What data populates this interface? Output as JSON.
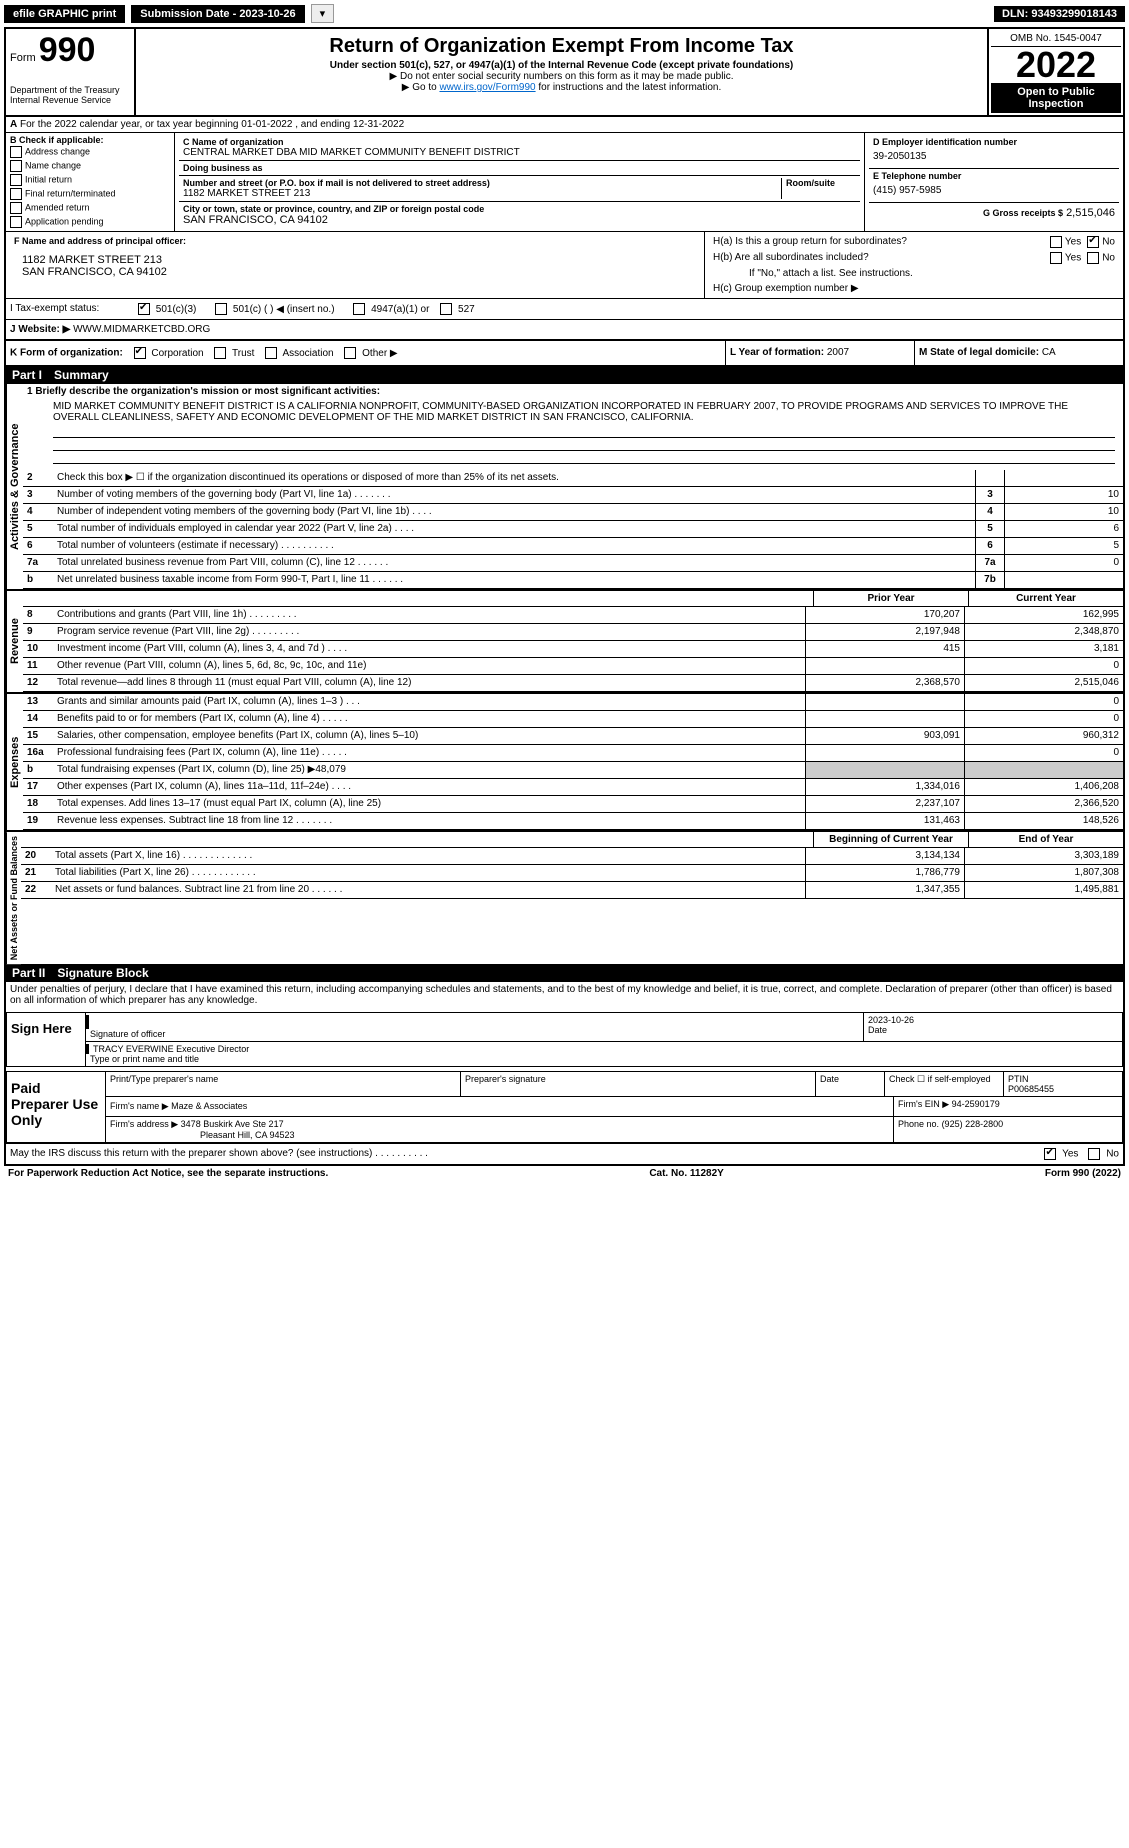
{
  "topbar": {
    "efile": "efile GRAPHIC print",
    "submission": "Submission Date - 2023-10-26",
    "dln": "DLN: 93493299018143"
  },
  "header": {
    "form_word": "Form",
    "form_num": "990",
    "dept": "Department of the Treasury\nInternal Revenue Service",
    "title": "Return of Organization Exempt From Income Tax",
    "subtitle": "Under section 501(c), 527, or 4947(a)(1) of the Internal Revenue Code (except private foundations)",
    "warn": "▶ Do not enter social security numbers on this form as it may be made public.",
    "goto": "▶ Go to www.irs.gov/Form990 for instructions and the latest information.",
    "goto_link": "www.irs.gov/Form990",
    "omb": "OMB No. 1545-0047",
    "year": "2022",
    "opi": "Open to Public Inspection"
  },
  "section_a": "For the 2022 calendar year, or tax year beginning 01-01-2022   , and ending 12-31-2022",
  "box_b": {
    "title": "B Check if applicable:",
    "items": [
      "Address change",
      "Name change",
      "Initial return",
      "Final return/terminated",
      "Amended return",
      "Application pending"
    ]
  },
  "box_c": {
    "name_lbl": "C Name of organization",
    "name": "CENTRAL MARKET DBA MID MARKET COMMUNITY BENEFIT DISTRICT",
    "dba_lbl": "Doing business as",
    "addr_lbl": "Number and street (or P.O. box if mail is not delivered to street address)",
    "room_lbl": "Room/suite",
    "addr": "1182 MARKET STREET 213",
    "city_lbl": "City or town, state or province, country, and ZIP or foreign postal code",
    "city": "SAN FRANCISCO, CA  94102"
  },
  "box_d": {
    "lbl": "D Employer identification number",
    "val": "39-2050135"
  },
  "box_e": {
    "lbl": "E Telephone number",
    "val": "(415) 957-5985"
  },
  "box_g": {
    "lbl": "G Gross receipts $",
    "val": "2,515,046"
  },
  "box_f": {
    "lbl": "F  Name and address of principal officer:",
    "addr1": "1182 MARKET STREET 213",
    "addr2": "SAN FRANCISCO, CA  94102"
  },
  "box_h": {
    "a": "H(a)  Is this a group return for subordinates?",
    "b": "H(b)  Are all subordinates included?",
    "b2": "If \"No,\" attach a list. See instructions.",
    "c": "H(c)  Group exemption number ▶",
    "yes": "Yes",
    "no": "No"
  },
  "tax_status": {
    "i": "I  Tax-exempt status:",
    "c3": "501(c)(3)",
    "c": "501(c) (  ) ◀ (insert no.)",
    "a1": "4947(a)(1) or",
    "s527": "527"
  },
  "website": {
    "j": "J  Website: ▶",
    "val": "WWW.MIDMARKETCBD.ORG"
  },
  "box_k": "K Form of organization:",
  "k_opts": {
    "corp": "Corporation",
    "trust": "Trust",
    "assoc": "Association",
    "other": "Other ▶"
  },
  "box_l": {
    "lbl": "L Year of formation:",
    "val": "2007"
  },
  "box_m": {
    "lbl": "M State of legal domicile:",
    "val": "CA"
  },
  "part1": {
    "label": "Part I",
    "title": "Summary"
  },
  "mission": {
    "q": "1  Briefly describe the organization's mission or most significant activities:",
    "text": "MID MARKET COMMUNITY BENEFIT DISTRICT IS A CALIFORNIA NONPROFIT, COMMUNITY-BASED ORGANIZATION INCORPORATED IN FEBRUARY 2007, TO PROVIDE PROGRAMS AND SERVICES TO IMPROVE THE OVERALL CLEANLINESS, SAFETY AND ECONOMIC DEVELOPMENT OF THE MID MARKET DISTRICT IN SAN FRANCISCO, CALIFORNIA."
  },
  "gov_lines": [
    {
      "n": "2",
      "d": "Check this box ▶ ☐  if the organization discontinued its operations or disposed of more than 25% of its net assets.",
      "box": "",
      "v": ""
    },
    {
      "n": "3",
      "d": "Number of voting members of the governing body (Part VI, line 1a)   .    .    .    .    .    .    .",
      "box": "3",
      "v": "10"
    },
    {
      "n": "4",
      "d": "Number of independent voting members of the governing body (Part VI, line 1b)   .    .    .    .",
      "box": "4",
      "v": "10"
    },
    {
      "n": "5",
      "d": "Total number of individuals employed in calendar year 2022 (Part V, line 2a)   .    .    .    .",
      "box": "5",
      "v": "6"
    },
    {
      "n": "6",
      "d": "Total number of volunteers (estimate if necessary)   .    .    .    .    .    .    .    .    .    .",
      "box": "6",
      "v": "5"
    },
    {
      "n": "7a",
      "d": "Total unrelated business revenue from Part VIII, column (C), line 12   .    .    .    .    .    .",
      "box": "7a",
      "v": "0"
    },
    {
      "n": "b",
      "d": "Net unrelated business taxable income from Form 990-T, Part I, line 11   .    .    .    .    .    .",
      "box": "7b",
      "v": ""
    }
  ],
  "col_headers": {
    "prior": "Prior Year",
    "current": "Current Year",
    "boy": "Beginning of Current Year",
    "eoy": "End of Year"
  },
  "rev_lines": [
    {
      "n": "8",
      "d": "Contributions and grants (Part VIII, line 1h)   .    .    .    .    .    .    .    .    .",
      "p": "170,207",
      "c": "162,995"
    },
    {
      "n": "9",
      "d": "Program service revenue (Part VIII, line 2g)   .    .    .    .    .    .    .    .    .",
      "p": "2,197,948",
      "c": "2,348,870"
    },
    {
      "n": "10",
      "d": "Investment income (Part VIII, column (A), lines 3, 4, and 7d )   .    .    .    .",
      "p": "415",
      "c": "3,181"
    },
    {
      "n": "11",
      "d": "Other revenue (Part VIII, column (A), lines 5, 6d, 8c, 9c, 10c, and 11e)",
      "p": "",
      "c": "0"
    },
    {
      "n": "12",
      "d": "Total revenue—add lines 8 through 11 (must equal Part VIII, column (A), line 12)",
      "p": "2,368,570",
      "c": "2,515,046"
    }
  ],
  "exp_lines": [
    {
      "n": "13",
      "d": "Grants and similar amounts paid (Part IX, column (A), lines 1–3 )   .    .    .",
      "p": "",
      "c": "0"
    },
    {
      "n": "14",
      "d": "Benefits paid to or for members (Part IX, column (A), line 4)   .    .    .    .    .",
      "p": "",
      "c": "0"
    },
    {
      "n": "15",
      "d": "Salaries, other compensation, employee benefits (Part IX, column (A), lines 5–10)",
      "p": "903,091",
      "c": "960,312"
    },
    {
      "n": "16a",
      "d": "Professional fundraising fees (Part IX, column (A), line 11e)   .    .    .    .    .",
      "p": "",
      "c": "0"
    },
    {
      "n": "b",
      "d": "Total fundraising expenses (Part IX, column (D), line 25) ▶48,079",
      "p": "",
      "c": "",
      "gray": true
    },
    {
      "n": "17",
      "d": "Other expenses (Part IX, column (A), lines 11a–11d, 11f–24e)   .    .    .    .",
      "p": "1,334,016",
      "c": "1,406,208"
    },
    {
      "n": "18",
      "d": "Total expenses. Add lines 13–17 (must equal Part IX, column (A), line 25)",
      "p": "2,237,107",
      "c": "2,366,520"
    },
    {
      "n": "19",
      "d": "Revenue less expenses. Subtract line 18 from line 12   .    .    .    .    .    .    .",
      "p": "131,463",
      "c": "148,526"
    }
  ],
  "net_lines": [
    {
      "n": "20",
      "d": "Total assets (Part X, line 16)   .    .    .    .    .    .    .    .    .    .    .    .    .",
      "p": "3,134,134",
      "c": "3,303,189"
    },
    {
      "n": "21",
      "d": "Total liabilities (Part X, line 26)   .    .    .    .    .    .    .    .    .    .    .    .",
      "p": "1,786,779",
      "c": "1,807,308"
    },
    {
      "n": "22",
      "d": "Net assets or fund balances. Subtract line 21 from line 20   .    .    .    .    .    .",
      "p": "1,347,355",
      "c": "1,495,881"
    }
  ],
  "vlabels": {
    "gov": "Activities & Governance",
    "rev": "Revenue",
    "exp": "Expenses",
    "net": "Net Assets or Fund Balances"
  },
  "part2": {
    "label": "Part II",
    "title": "Signature Block",
    "penalty": "Under penalties of perjury, I declare that I have examined this return, including accompanying schedules and statements, and to the best of my knowledge and belief, it is true, correct, and complete. Declaration of preparer (other than officer) is based on all information of which preparer has any knowledge."
  },
  "sign": {
    "here": "Sign Here",
    "sig_officer": "Signature of officer",
    "date": "Date",
    "date_val": "2023-10-26",
    "name": "TRACY EVERWINE  Executive Director",
    "name_lbl": "Type or print name and title"
  },
  "paid": {
    "title": "Paid Preparer Use Only",
    "pname_lbl": "Print/Type preparer's name",
    "psig_lbl": "Preparer's signature",
    "pdate_lbl": "Date",
    "check_lbl": "Check ☐ if self-employed",
    "ptin_lbl": "PTIN",
    "ptin": "P00685455",
    "firm_name_lbl": "Firm's name    ▶",
    "firm_name": "Maze & Associates",
    "firm_ein_lbl": "Firm's EIN ▶",
    "firm_ein": "94-2590179",
    "firm_addr_lbl": "Firm's address ▶",
    "firm_addr1": "3478 Buskirk Ave Ste 217",
    "firm_addr2": "Pleasant Hill, CA  94523",
    "phone_lbl": "Phone no.",
    "phone": "(925) 228-2800"
  },
  "may_discuss": "May the IRS discuss this return with the preparer shown above? (see instructions)   .    .    .    .    .    .    .    .    .    .",
  "footer": {
    "pra": "For Paperwork Reduction Act Notice, see the separate instructions.",
    "cat": "Cat. No. 11282Y",
    "form": "Form 990 (2022)"
  }
}
